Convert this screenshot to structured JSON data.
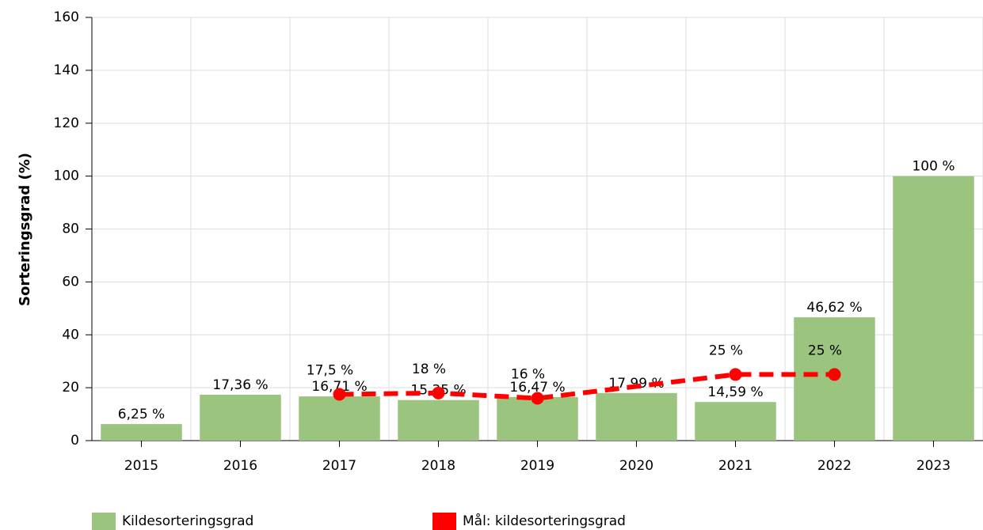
{
  "chart_data": {
    "type": "bar",
    "y_label": "Sorteringsgrad (%)",
    "categories": [
      "2015",
      "2016",
      "2017",
      "2018",
      "2019",
      "2020",
      "2021",
      "2022",
      "2023"
    ],
    "series": [
      {
        "name": "Kildesorteringsgrad",
        "type": "bar",
        "color": "#9bc47f",
        "values": [
          6.25,
          17.36,
          16.71,
          15.35,
          16.47,
          17.99,
          14.59,
          46.62,
          100
        ],
        "value_labels": [
          "6,25 %",
          "17,36 %",
          "16,71 %",
          "15,35 %",
          "16,47 %",
          "17,99 %",
          "14,59 %",
          "46,62 %",
          "100 %"
        ]
      },
      {
        "name": "Mål: kildesorteringsgrad",
        "type": "line",
        "color": "#ff0000",
        "values": [
          null,
          null,
          17.5,
          18,
          16,
          null,
          25,
          25,
          null
        ],
        "value_labels": [
          null,
          null,
          "17,5 %",
          "18 %",
          "16 %",
          null,
          "25 %",
          "25 %",
          null
        ]
      }
    ],
    "ylim": [
      0,
      160
    ],
    "yticks": [
      0,
      20,
      40,
      60,
      80,
      100,
      120,
      140,
      160
    ],
    "grid": true
  }
}
